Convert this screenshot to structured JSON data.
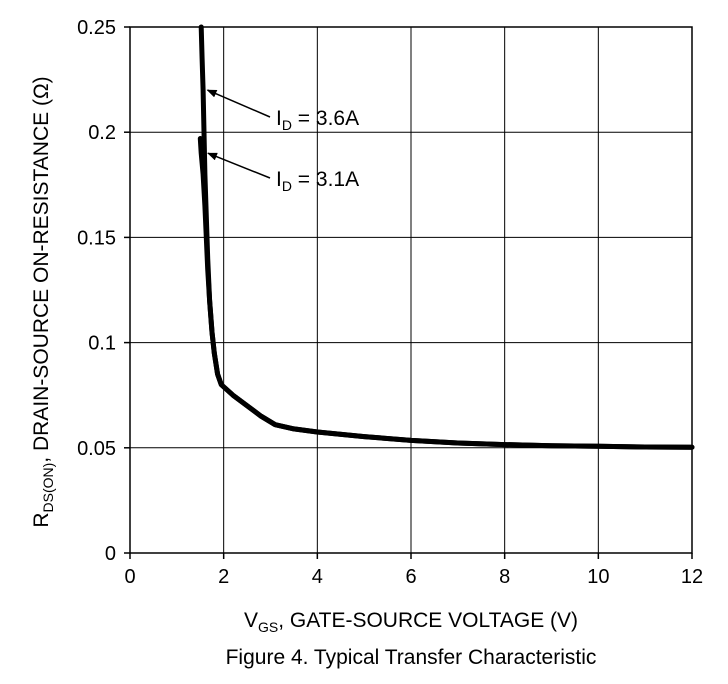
{
  "chart_data": {
    "type": "line",
    "title": "Figure 4. Typical Transfer Characteristic",
    "xlabel": {
      "main": "V",
      "sub": "GS",
      "rest": ", GATE-SOURCE VOLTAGE (V)"
    },
    "ylabel": {
      "main": "R",
      "sub": "DS(ON)",
      "rest": ", DRAIN-SOURCE ON-RESISTANCE (Ω)"
    },
    "xlim": [
      0,
      12
    ],
    "ylim": [
      0,
      0.25
    ],
    "x_ticks": [
      "0",
      "2",
      "4",
      "6",
      "8",
      "10",
      "12"
    ],
    "y_ticks": [
      "0",
      "0.05",
      "0.1",
      "0.15",
      "0.2",
      "0.25"
    ],
    "grid": true,
    "series": [
      {
        "name": "I_D = 3.6A",
        "color": "#000000",
        "points": [
          [
            1.52,
            0.25
          ],
          [
            1.54,
            0.235
          ],
          [
            1.56,
            0.22
          ],
          [
            1.58,
            0.2
          ],
          [
            1.6,
            0.18
          ],
          [
            1.63,
            0.16
          ],
          [
            1.66,
            0.14
          ],
          [
            1.7,
            0.12
          ],
          [
            1.75,
            0.105
          ],
          [
            1.8,
            0.095
          ],
          [
            1.87,
            0.085
          ],
          [
            1.95,
            0.08
          ],
          [
            2.2,
            0.075
          ],
          [
            2.5,
            0.07
          ],
          [
            2.8,
            0.065
          ],
          [
            3.1,
            0.061
          ],
          [
            3.5,
            0.059
          ],
          [
            4,
            0.0575
          ],
          [
            5,
            0.0553
          ],
          [
            6,
            0.0535
          ],
          [
            7,
            0.0523
          ],
          [
            8,
            0.0515
          ],
          [
            9,
            0.051
          ],
          [
            10,
            0.0507
          ],
          [
            11,
            0.0504
          ],
          [
            12,
            0.0503
          ]
        ]
      },
      {
        "name": "I_D = 3.1A",
        "color": "#000000",
        "points": [
          [
            1.5,
            0.197
          ],
          [
            1.52,
            0.19
          ],
          [
            1.56,
            0.18
          ],
          [
            1.6,
            0.165
          ],
          [
            1.63,
            0.15
          ],
          [
            1.66,
            0.135
          ],
          [
            1.7,
            0.12
          ],
          [
            1.75,
            0.105
          ],
          [
            1.8,
            0.095
          ],
          [
            1.87,
            0.085
          ],
          [
            1.95,
            0.08
          ],
          [
            2.2,
            0.075
          ],
          [
            2.5,
            0.07
          ],
          [
            2.8,
            0.065
          ],
          [
            3.1,
            0.061
          ],
          [
            3.5,
            0.059
          ],
          [
            4,
            0.0575
          ],
          [
            5,
            0.0553
          ],
          [
            6,
            0.0535
          ],
          [
            7,
            0.0523
          ],
          [
            8,
            0.0515
          ],
          [
            9,
            0.051
          ],
          [
            10,
            0.0507
          ],
          [
            11,
            0.0504
          ],
          [
            12,
            0.0503
          ]
        ]
      }
    ],
    "annotations": [
      {
        "main": "I",
        "sub": "D",
        "rest": " = 3.6A",
        "arrow_to": [
          1.57,
          0.22
        ]
      },
      {
        "main": "I",
        "sub": "D",
        "rest": " = 3.1A",
        "arrow_to": [
          1.58,
          0.19
        ]
      }
    ]
  }
}
